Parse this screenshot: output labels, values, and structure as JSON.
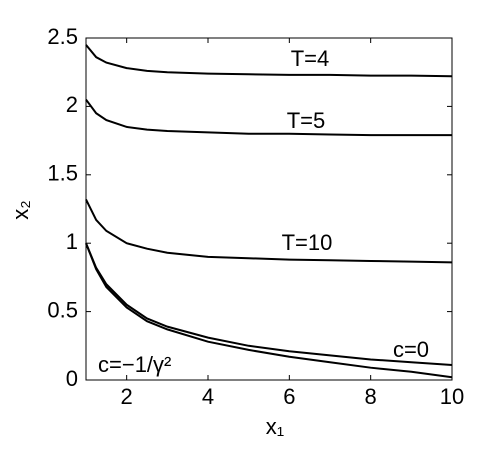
{
  "chart_data": {
    "type": "line",
    "xlabel": "x₁",
    "ylabel": "x₂",
    "x": [
      1,
      1.25,
      1.5,
      2,
      2.5,
      3,
      4,
      5,
      6,
      7,
      8,
      9,
      10
    ],
    "series": [
      {
        "name": "T=4",
        "color": "#000000",
        "values": [
          2.45,
          2.36,
          2.32,
          2.28,
          2.26,
          2.25,
          2.24,
          2.235,
          2.23,
          2.23,
          2.225,
          2.225,
          2.22
        ]
      },
      {
        "name": "T=5",
        "color": "#000000",
        "values": [
          2.05,
          1.95,
          1.9,
          1.85,
          1.83,
          1.82,
          1.81,
          1.8,
          1.8,
          1.795,
          1.79,
          1.79,
          1.79
        ]
      },
      {
        "name": "T=10",
        "color": "#000000",
        "values": [
          1.32,
          1.17,
          1.09,
          1.0,
          0.96,
          0.93,
          0.9,
          0.89,
          0.88,
          0.875,
          0.87,
          0.865,
          0.86
        ]
      },
      {
        "name": "c=0",
        "color": "#000000",
        "values": [
          1.0,
          0.82,
          0.7,
          0.55,
          0.45,
          0.39,
          0.31,
          0.25,
          0.21,
          0.18,
          0.15,
          0.13,
          0.11
        ]
      },
      {
        "name": "c=−1/γ²",
        "color": "#000000",
        "values": [
          1.0,
          0.81,
          0.68,
          0.53,
          0.43,
          0.37,
          0.28,
          0.22,
          0.17,
          0.13,
          0.09,
          0.06,
          0.02
        ]
      }
    ],
    "xlim": [
      1,
      10
    ],
    "xticks": [
      2,
      4,
      6,
      8,
      10
    ],
    "ylim": [
      0,
      2.5
    ],
    "yticks": [
      0,
      0.5,
      1,
      1.5,
      2,
      2.5
    ]
  }
}
